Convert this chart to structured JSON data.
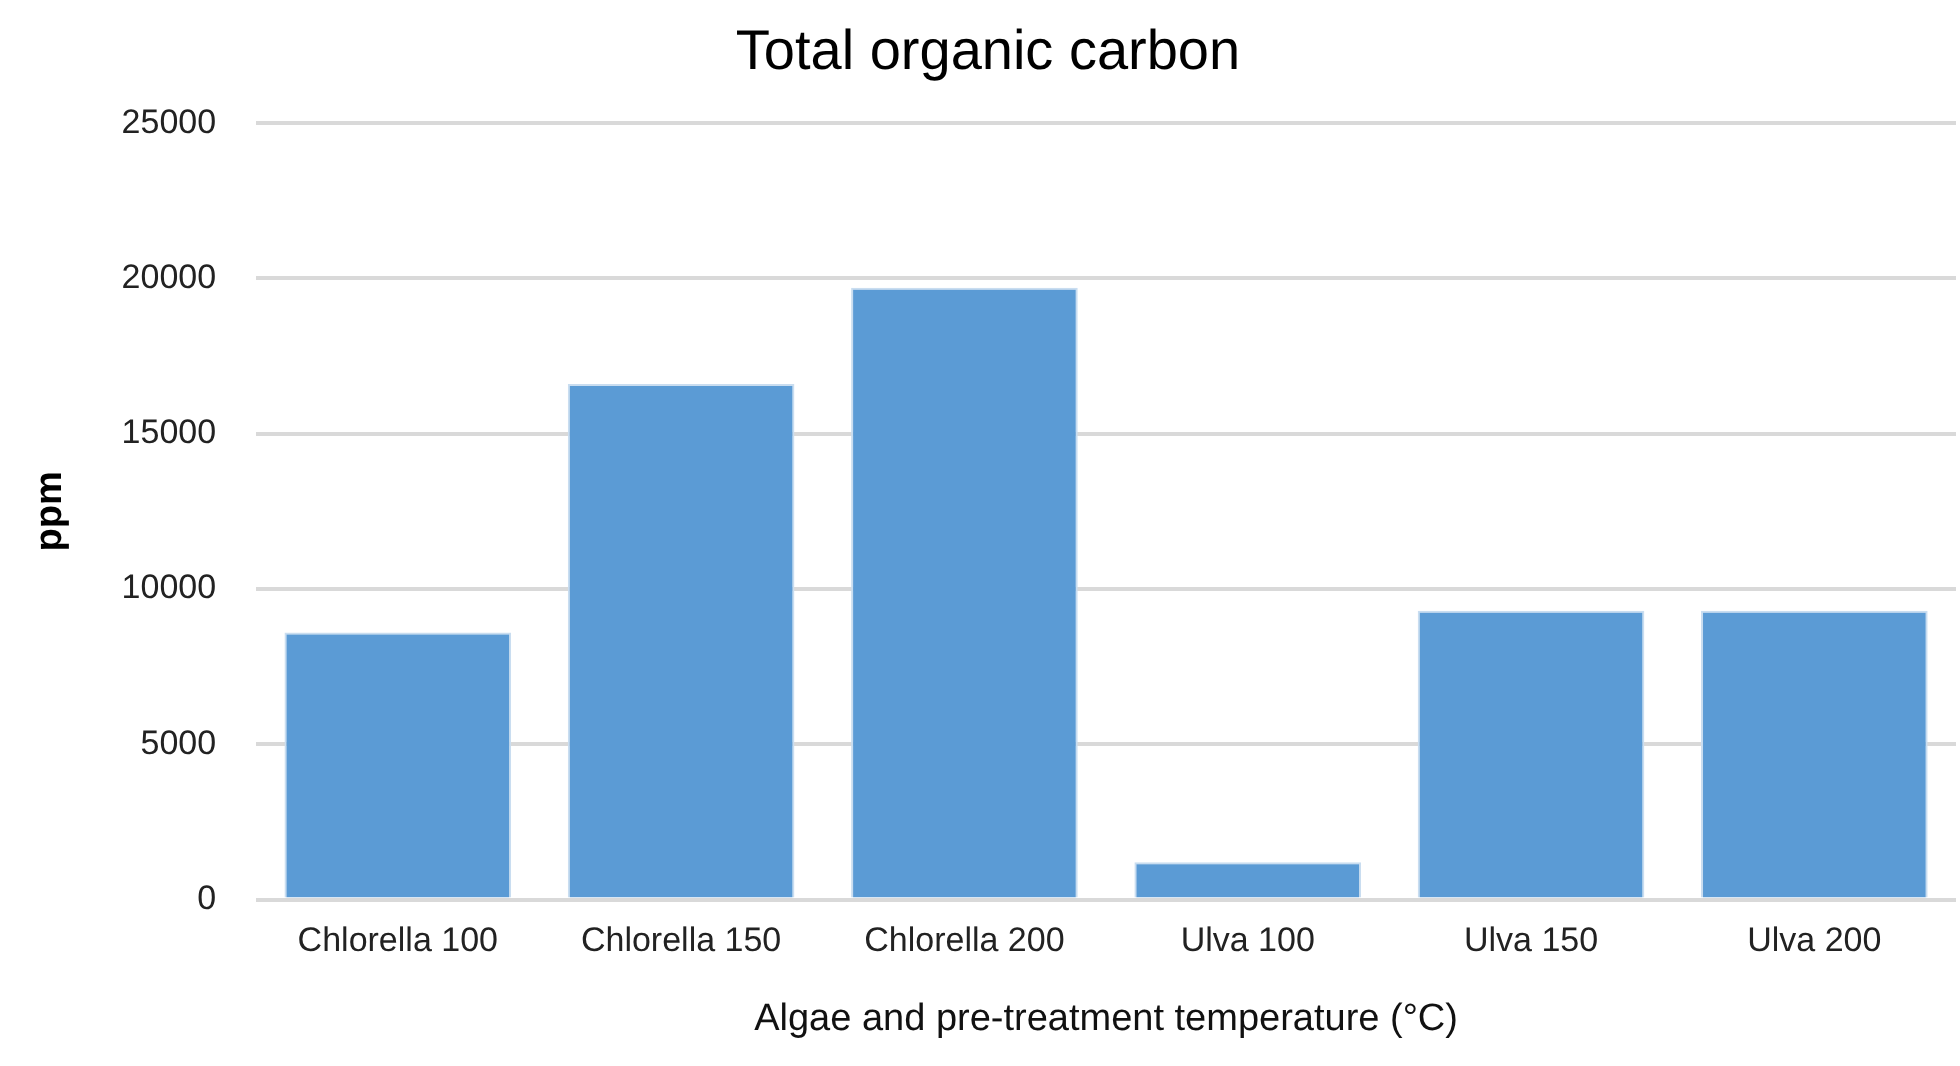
{
  "chart_data": {
    "type": "bar",
    "title": "Total organic carbon",
    "xlabel": "Algae and pre-treatment temperature (°C)",
    "ylabel": "ppm",
    "categories": [
      "Chlorella 100",
      "Chlorella 150",
      "Chlorella 200",
      "Ulva 100",
      "Ulva 150",
      "Ulva 200"
    ],
    "values": [
      8600,
      16600,
      19700,
      1200,
      9300,
      9300
    ],
    "color": "#5b9bd5",
    "ylim": [
      0,
      25000
    ],
    "yticks": [
      0,
      5000,
      10000,
      15000,
      20000,
      25000
    ],
    "grid": "y",
    "legend": false
  }
}
